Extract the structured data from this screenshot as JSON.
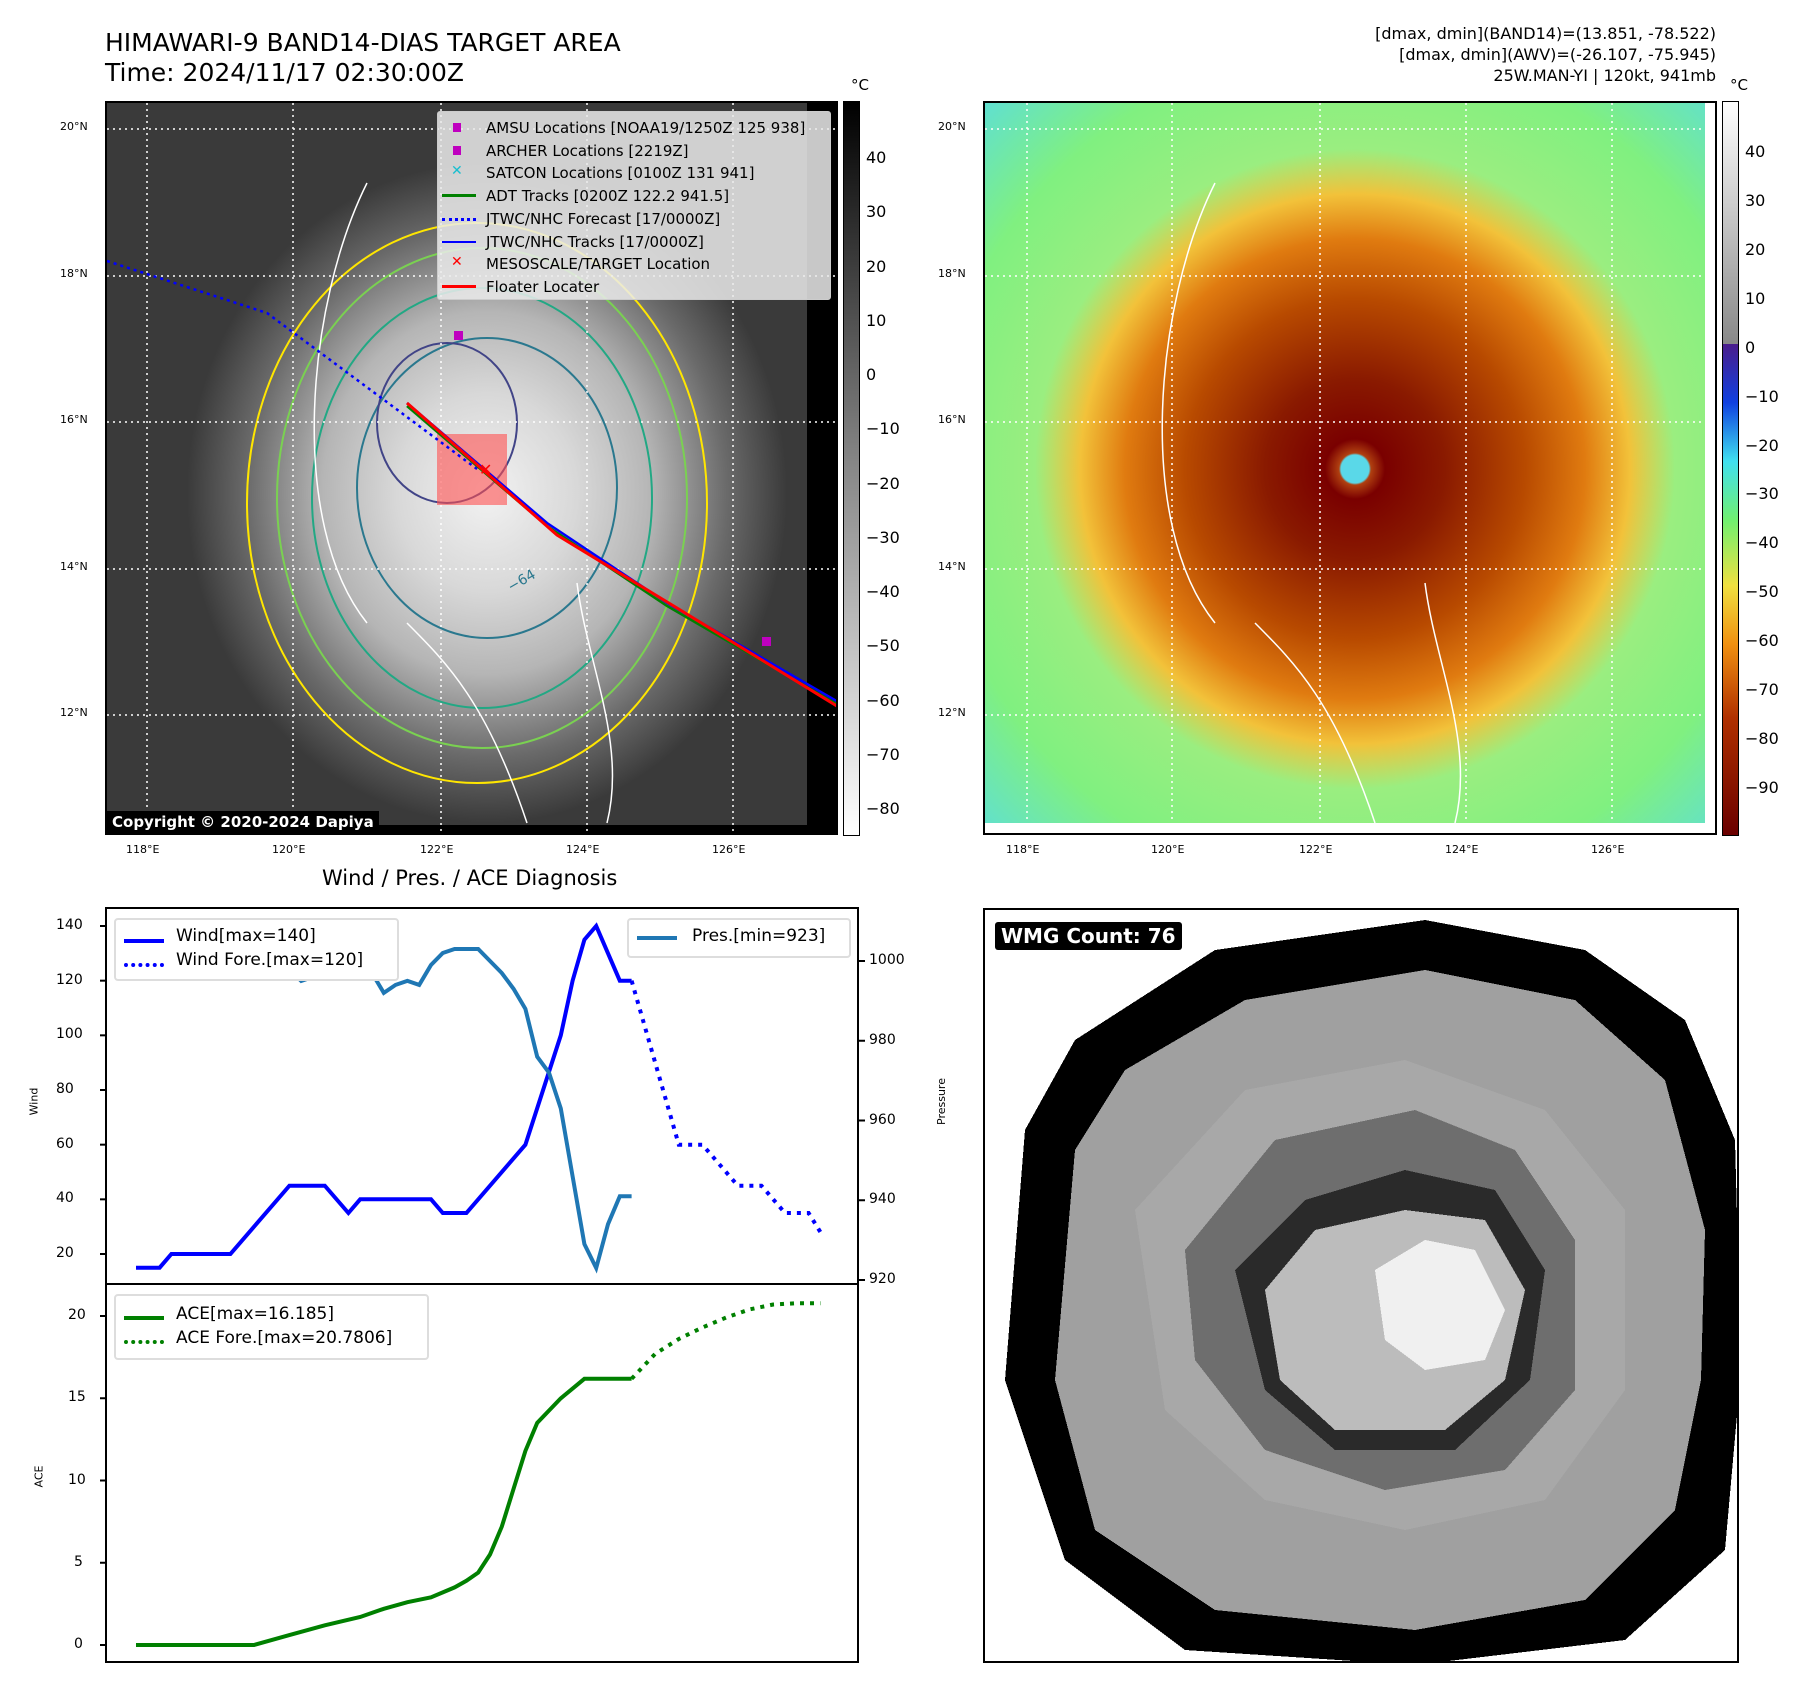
{
  "header": {
    "title": "HIMAWARI-9 BAND14-DIAS TARGET AREA",
    "time": "Time: 2024/11/17 02:30:00Z",
    "info": [
      "[dmax, dmin](BAND14)=(13.851, -78.522)",
      "[dmax, dmin](AWV)=(-26.107, -75.945)",
      "25W.MAN-YI | 120kt, 941mb"
    ]
  },
  "maps": {
    "lat_labels": [
      "20°N",
      "18°N",
      "16°N",
      "14°N",
      "12°N"
    ],
    "lon_labels": [
      "118°E",
      "120°E",
      "122°E",
      "124°E",
      "126°E"
    ],
    "unit": "°C",
    "cbar_left": [
      "40",
      "30",
      "20",
      "10",
      "0",
      "−10",
      "−20",
      "−30",
      "−40",
      "−50",
      "−60",
      "−70",
      "−80"
    ],
    "cbar_right": [
      "40",
      "30",
      "20",
      "10",
      "0",
      "−10",
      "−20",
      "−30",
      "−40",
      "−50",
      "−60",
      "−70",
      "−80",
      "−90"
    ],
    "copyright": "Copyright © 2020-2024 Dapiya",
    "contour_label": "−64",
    "legend": [
      {
        "label": "AMSU Locations [NOAA19/1250Z 125 938]",
        "color": "#bf00bf",
        "kind": "square"
      },
      {
        "label": "ARCHER Locations [2219Z]",
        "color": "#bf00bf",
        "kind": "square"
      },
      {
        "label": "SATCON Locations [0100Z 131 941]",
        "color": "#17becf",
        "kind": "x"
      },
      {
        "label": "ADT Tracks [0200Z 122.2 941.5]",
        "color": "#008000",
        "kind": "line"
      },
      {
        "label": "JTWC/NHC Forecast [17/0000Z]",
        "color": "#0000ff",
        "kind": "dotted"
      },
      {
        "label": "JTWC/NHC Tracks [17/0000Z]",
        "color": "#0000ff",
        "kind": "marker"
      },
      {
        "label": "MESOSCALE/TARGET Location",
        "color": "#ff0000",
        "kind": "x"
      },
      {
        "label": "Floater Locater",
        "color": "#ff0000",
        "kind": "line"
      }
    ]
  },
  "wmg": {
    "label": "WMG Count: 76"
  },
  "chart_data": [
    {
      "type": "line",
      "title": "Wind / Pres. / ACE Diagnosis",
      "ylabel": "Wind",
      "y2label": "Pressure",
      "ylim": [
        10,
        145
      ],
      "y2lim": [
        917,
        1011
      ],
      "yticks": [
        "140",
        "120",
        "100",
        "80",
        "60",
        "40",
        "20"
      ],
      "y2ticks": [
        "1000",
        "980",
        "960",
        "940",
        "920"
      ],
      "series": [
        {
          "name": "Wind[max=140]",
          "color": "#0000ff",
          "style": "solid",
          "axis": "left",
          "x": [
            0,
            2,
            3,
            8,
            13,
            16,
            18,
            19,
            25,
            26,
            28,
            33,
            36,
            37,
            38,
            39,
            41,
            42
          ],
          "y": [
            15,
            15,
            20,
            20,
            45,
            45,
            35,
            40,
            40,
            35,
            35,
            60,
            100,
            120,
            135,
            140,
            120,
            120
          ]
        },
        {
          "name": "Wind Fore.[max=120]",
          "color": "#0000ff",
          "style": "dotted",
          "axis": "left",
          "x": [
            42,
            46,
            47,
            48,
            49,
            51,
            52,
            53,
            54,
            55,
            57,
            58
          ],
          "y": [
            120,
            60,
            60,
            60,
            55,
            45,
            45,
            45,
            40,
            35,
            35,
            28
          ]
        },
        {
          "name": "Pres.[min=923]",
          "color": "#1f77b4",
          "style": "solid",
          "axis": "right",
          "x": [
            0,
            2,
            3,
            5,
            9,
            10,
            11,
            13,
            14,
            16,
            18,
            19,
            20,
            21,
            22,
            23,
            24,
            25,
            26,
            27,
            29,
            30,
            31,
            32,
            33,
            34,
            35,
            36,
            37,
            38,
            39,
            40,
            41,
            42
          ],
          "y": [
            1009,
            1009,
            1006,
            1007,
            1007,
            1004,
            1004,
            998,
            995,
            997,
            1002.5,
            997,
            997,
            992,
            994,
            995,
            994,
            999,
            1002,
            1003,
            1003,
            1000,
            997,
            993,
            988,
            976,
            972,
            963,
            946,
            929,
            923,
            934,
            941,
            941
          ]
        }
      ]
    },
    {
      "type": "line",
      "ylabel": "ACE",
      "ylim": [
        -0.8,
        21.8
      ],
      "yticks": [
        "20",
        "15",
        "10",
        "5",
        "0"
      ],
      "series": [
        {
          "name": "ACE[max=16.185]",
          "color": "#008000",
          "style": "solid",
          "x": [
            0,
            10,
            13,
            16,
            19,
            21,
            23,
            25,
            26,
            27,
            28,
            29,
            30,
            31,
            32,
            33,
            34,
            36,
            38,
            39,
            40,
            41,
            42
          ],
          "y": [
            0,
            0,
            0.6,
            1.2,
            1.7,
            2.2,
            2.6,
            2.9,
            3.2,
            3.5,
            3.9,
            4.4,
            5.5,
            7.2,
            9.5,
            11.8,
            13.5,
            15,
            16.185,
            16.185,
            16.185,
            16.185,
            16.185
          ]
        },
        {
          "name": "ACE Fore.[max=20.7806]",
          "color": "#008000",
          "style": "dotted",
          "x": [
            42,
            44,
            46,
            48,
            50,
            52,
            54,
            56,
            58
          ],
          "y": [
            16.185,
            17.7,
            18.6,
            19.3,
            19.9,
            20.4,
            20.7,
            20.78,
            20.78
          ]
        }
      ]
    }
  ]
}
